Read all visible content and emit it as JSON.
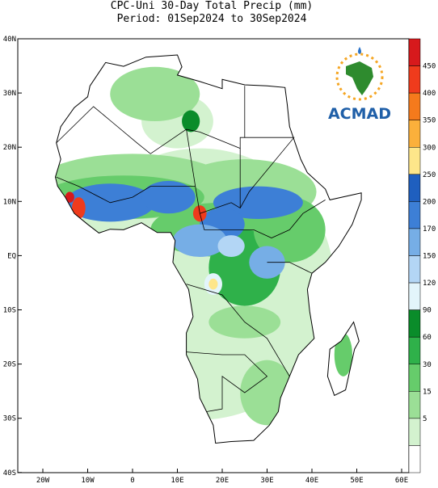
{
  "title": "CPC-Uni 30-Day Total Precip (mm)",
  "subtitle": "Period: 01Sep2024 to 30Sep2024",
  "longitude_labels": [
    "20W",
    "10W",
    "0",
    "10E",
    "20E",
    "30E",
    "40E",
    "50E",
    "60E"
  ],
  "latitude_labels": [
    "40N",
    "30N",
    "20N",
    "10N",
    "EQ",
    "10S",
    "20S",
    "30S",
    "40S"
  ],
  "colorbar": {
    "labels": [
      "450",
      "400",
      "350",
      "300",
      "250",
      "200",
      "170",
      "150",
      "120",
      "90",
      "60",
      "30",
      "15",
      "5"
    ],
    "colors": [
      "#d7191c",
      "#ef3b1c",
      "#f57a1c",
      "#fbb03b",
      "#fde68a",
      "#1f5fbf",
      "#3d7fd6",
      "#76aee6",
      "#b3d6f5",
      "#e3f5fb",
      "#0a8c2a",
      "#2fb14a",
      "#66cc6b",
      "#9bdf96",
      "#d3f2cf",
      "#ffffff"
    ]
  },
  "logo": {
    "text": "ACMAD"
  }
}
